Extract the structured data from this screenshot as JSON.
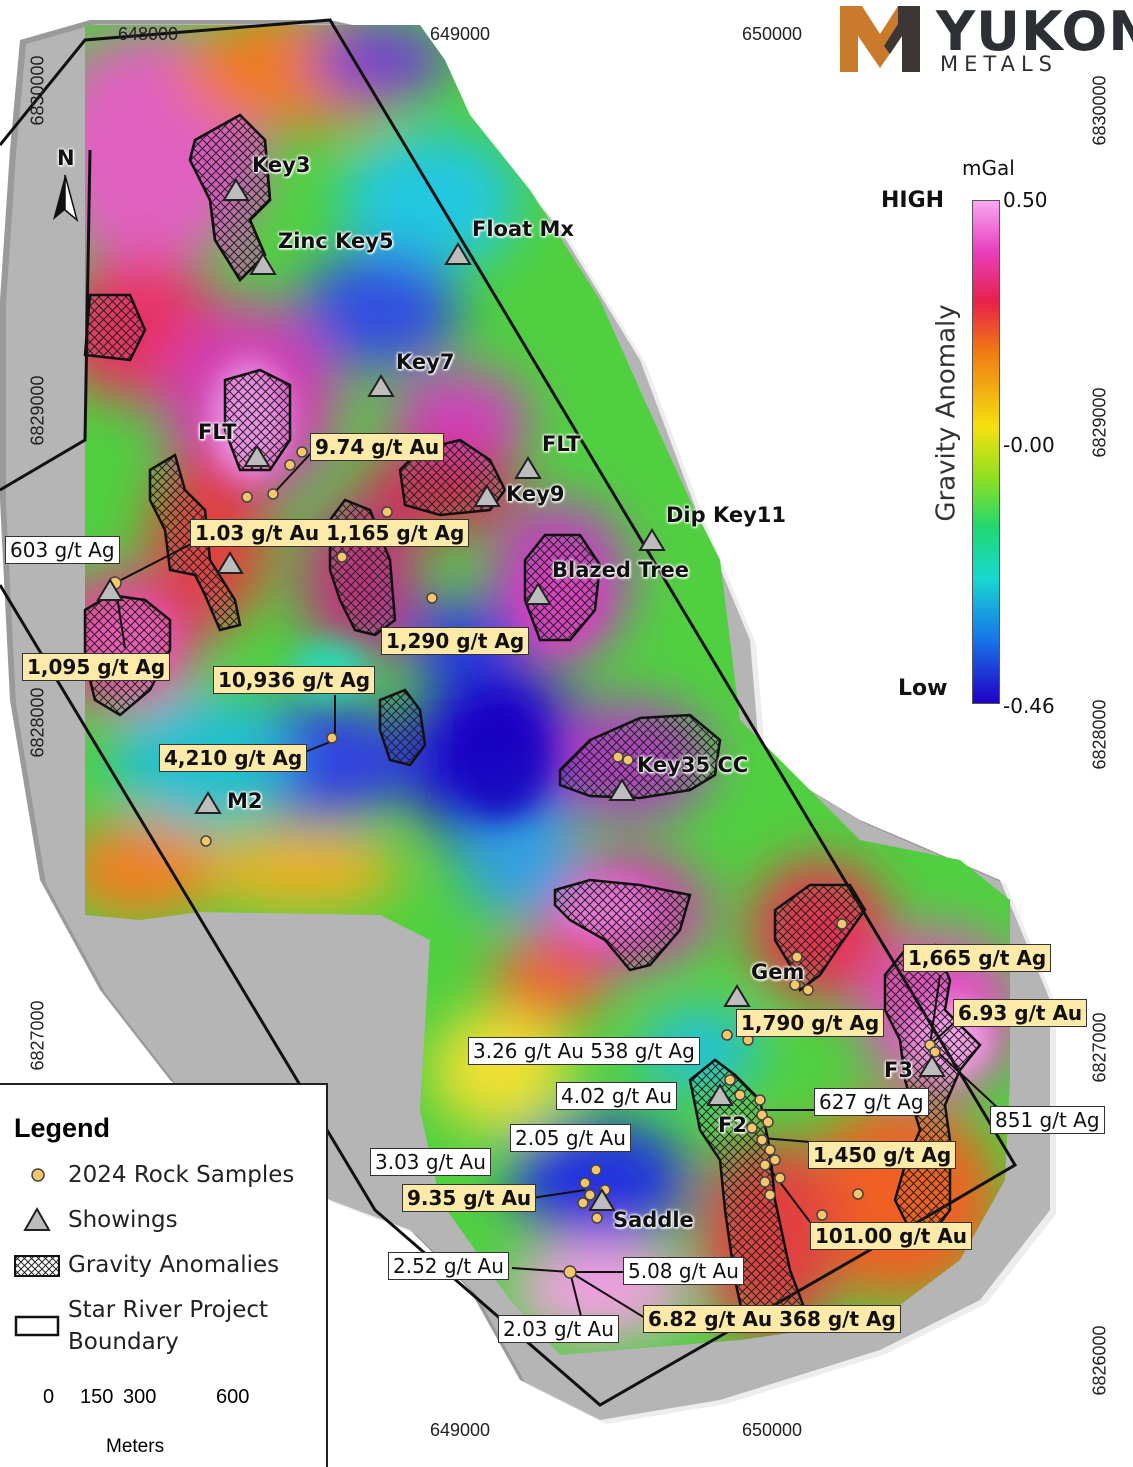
{
  "logo": {
    "name": "YUKON",
    "sub": "METALS",
    "mark_colors": [
      "#c97a2b",
      "#2c3035"
    ]
  },
  "grid": {
    "eastings_top": [
      "648000",
      "649000",
      "650000"
    ],
    "eastings_bottom": [
      "649000",
      "650000"
    ],
    "northings_left": [
      "6830000",
      "6829000",
      "6828000",
      "6827000"
    ],
    "northings_right": [
      "6830000",
      "6829000",
      "6828000",
      "6827000",
      "6826000"
    ]
  },
  "north_arrow": {
    "label": "N"
  },
  "colorbar": {
    "unit": "mGal",
    "title": "Gravity Anomaly",
    "high_label": "HIGH",
    "low_label": "Low",
    "max": "0.50",
    "mid": "-0.00",
    "min": "-0.46",
    "colors": [
      "#f8a8f0",
      "#e83fc0",
      "#e8204a",
      "#e83a1c",
      "#f07a14",
      "#f5c010",
      "#e8f020",
      "#60d830",
      "#20d878",
      "#18d8d0",
      "#1890e8",
      "#2030d8",
      "#2000c8"
    ]
  },
  "showings": [
    {
      "name": "Key3"
    },
    {
      "name": "Zinc Key5"
    },
    {
      "name": "Float Mx"
    },
    {
      "name": "Key7"
    },
    {
      "name": "FLT"
    },
    {
      "name": "FLT"
    },
    {
      "name": "Key9"
    },
    {
      "name": "Dip Key11"
    },
    {
      "name": "Blazed Tree"
    },
    {
      "name": "Key35 CC"
    },
    {
      "name": "M2"
    },
    {
      "name": "Gem"
    },
    {
      "name": "F3"
    },
    {
      "name": "F2"
    },
    {
      "name": "Saddle"
    }
  ],
  "assay_labels": [
    {
      "text": "9.74 g/t Au",
      "style": "yel"
    },
    {
      "text": "603 g/t Ag",
      "style": "white"
    },
    {
      "text": "1.03 g/t Au 1,165 g/t Ag",
      "style": "yel"
    },
    {
      "text": "1,290 g/t Ag",
      "style": "yel"
    },
    {
      "text": "1,095 g/t Ag",
      "style": "yel"
    },
    {
      "text": "10,936 g/t Ag",
      "style": "yel"
    },
    {
      "text": "4,210 g/t Ag",
      "style": "yel"
    },
    {
      "text": "1,665 g/t Ag",
      "style": "yel"
    },
    {
      "text": "6.93 g/t Au",
      "style": "yel"
    },
    {
      "text": "1,790 g/t Ag",
      "style": "yel"
    },
    {
      "text": "3.26 g/t Au 538 g/t Ag",
      "style": "white"
    },
    {
      "text": "4.02 g/t Au",
      "style": "white"
    },
    {
      "text": "627 g/t Ag",
      "style": "white"
    },
    {
      "text": "851 g/t Ag",
      "style": "white"
    },
    {
      "text": "1,450 g/t Ag",
      "style": "yel"
    },
    {
      "text": "2.05 g/t Au",
      "style": "white"
    },
    {
      "text": "3.03 g/t Au",
      "style": "white"
    },
    {
      "text": "9.35 g/t Au",
      "style": "yel"
    },
    {
      "text": "101.00 g/t Au",
      "style": "yel"
    },
    {
      "text": "2.52 g/t Au",
      "style": "white"
    },
    {
      "text": "5.08 g/t Au",
      "style": "white"
    },
    {
      "text": "2.03 g/t Au",
      "style": "white"
    },
    {
      "text": "6.82 g/t Au 368 g/t Ag",
      "style": "yel"
    }
  ],
  "legend": {
    "title": "Legend",
    "items": [
      {
        "label": "2024 Rock Samples",
        "symbol": "sample-dot"
      },
      {
        "label": "Showings",
        "symbol": "triangle"
      },
      {
        "label": "Gravity Anomalies",
        "symbol": "crosshatch"
      },
      {
        "label": "Star River Project",
        "label2": "Boundary",
        "symbol": "boundary-box"
      }
    ],
    "scalebar": {
      "ticks": [
        "0",
        "150",
        "300",
        "600"
      ],
      "unit": "Meters"
    }
  },
  "colors": {
    "sample": "#f5c66a",
    "triangle": "#b8b8b8",
    "anomaly": "#c040c0",
    "boundary": "#111111"
  }
}
